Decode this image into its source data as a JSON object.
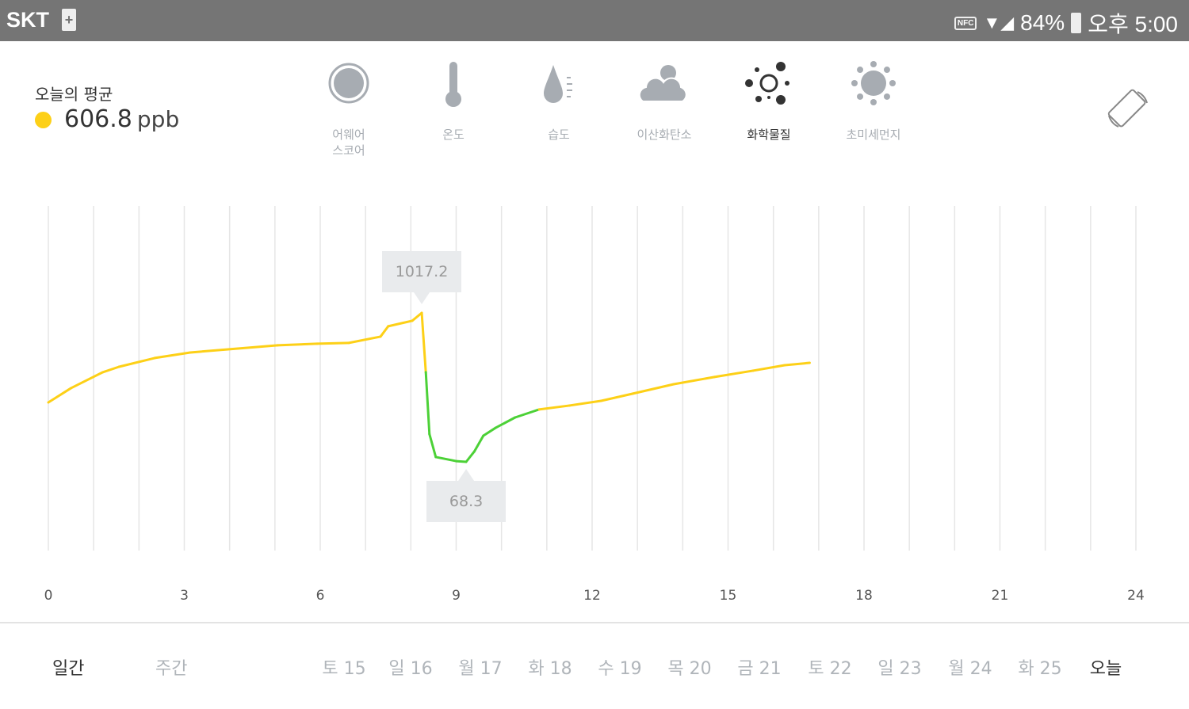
{
  "status_bar": {
    "carrier": "SKT",
    "nfc": "NFC",
    "battery": "84%",
    "time": "오후 5:00"
  },
  "summary": {
    "label": "오늘의 평균",
    "value": "606.8",
    "unit": "ppb",
    "dot_color": "#fdd017"
  },
  "categories": [
    {
      "label": "어웨어\n스코어",
      "icon": "score-circle-icon",
      "active": false
    },
    {
      "label": "온도",
      "icon": "thermometer-icon",
      "active": false
    },
    {
      "label": "습도",
      "icon": "humidity-drop-icon",
      "active": false
    },
    {
      "label": "이산화탄소",
      "icon": "cloud-icon",
      "active": false
    },
    {
      "label": "화학물질",
      "icon": "chemical-dots-icon",
      "active": true
    },
    {
      "label": "초미세먼지",
      "icon": "dust-particle-icon",
      "active": false
    }
  ],
  "chart_data": {
    "type": "line",
    "x_ticks": [
      "0",
      "3",
      "6",
      "9",
      "12",
      "15",
      "18",
      "21",
      "24"
    ],
    "xlim": [
      0,
      24
    ],
    "grid": "vertical hourly",
    "colors": {
      "high": "#fdd017",
      "low": "#4cd137"
    },
    "x": [
      0,
      0.5,
      1.2,
      1.56,
      2.35,
      3.13,
      4.18,
      5.06,
      5.93,
      6.63,
      7.33,
      7.5,
      8.03,
      8.24,
      8.33,
      8.41,
      8.55,
      9.0,
      9.22,
      9.4,
      9.6,
      9.87,
      10.3,
      10.83,
      11.5,
      12.2,
      12.9,
      13.8,
      14.7,
      15.55,
      16.25,
      16.8
    ],
    "y": [
      447,
      538,
      639,
      674,
      730,
      765,
      790,
      811,
      821,
      826,
      866,
      932,
      967,
      1017.2,
      639,
      245,
      99,
      73,
      68.3,
      134,
      235,
      285,
      351,
      402,
      427,
      457,
      503,
      563,
      609,
      649,
      684,
      699
    ],
    "annotations": {
      "max": {
        "label": "1017.2",
        "x": 8.24,
        "y": 1017.2
      },
      "min": {
        "label": "68.3",
        "x": 9.22,
        "y": 68.3
      }
    }
  },
  "period_tabs": [
    {
      "label": "일간",
      "active": true
    },
    {
      "label": "주간",
      "active": false
    }
  ],
  "dates": [
    "토 15",
    "일 16",
    "월 17",
    "화 18",
    "수 19",
    "목 20",
    "금 21",
    "토 22",
    "일 23",
    "월 24",
    "화 25",
    "오늘"
  ]
}
